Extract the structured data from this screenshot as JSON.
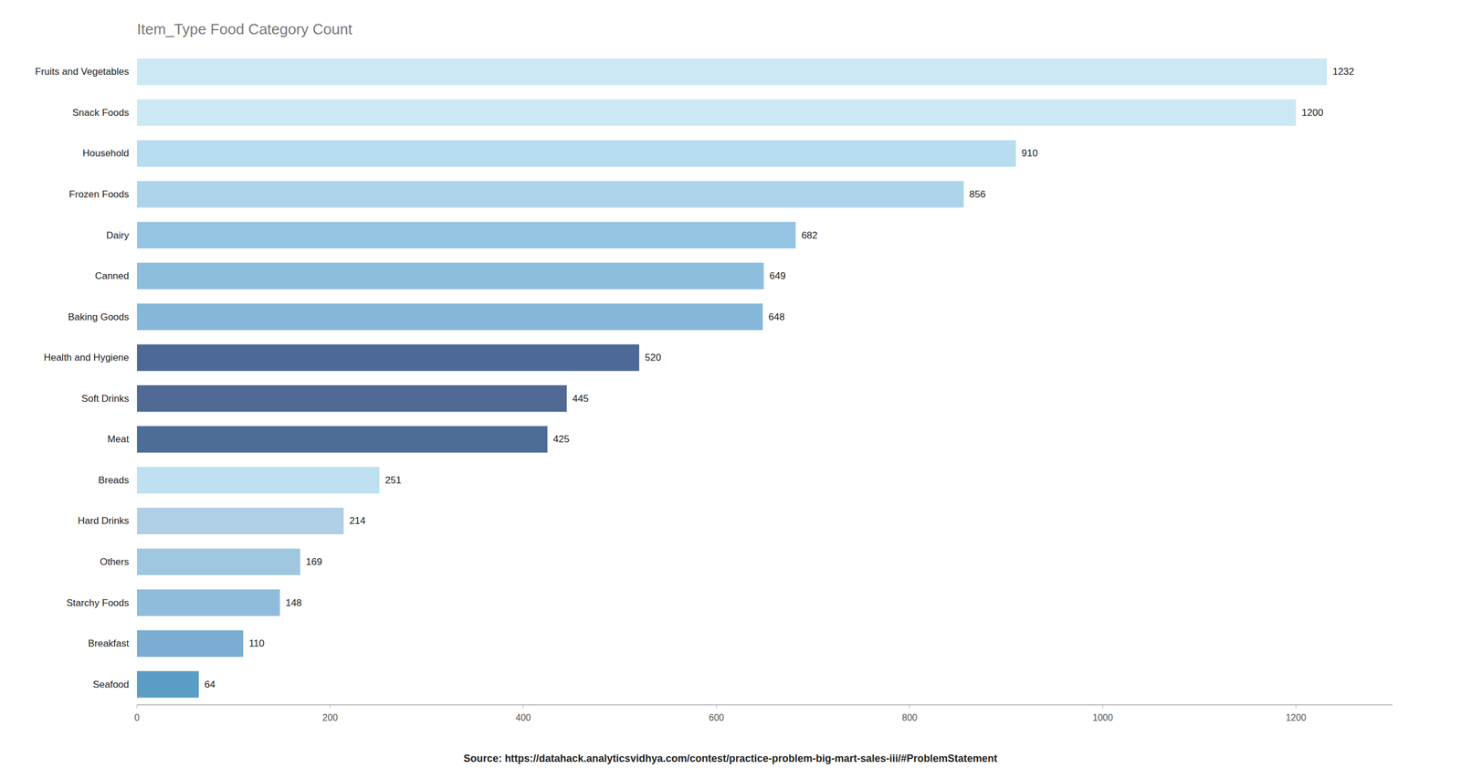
{
  "chart_data": {
    "type": "bar",
    "orientation": "horizontal",
    "title": "Item_Type Food Category Count",
    "categories": [
      "Fruits and Vegetables",
      "Snack Foods",
      "Household",
      "Frozen Foods",
      "Dairy",
      "Canned",
      "Baking Goods",
      "Health and Hygiene",
      "Soft Drinks",
      "Meat",
      "Breads",
      "Hard Drinks",
      "Others",
      "Starchy Foods",
      "Breakfast",
      "Seafood"
    ],
    "values": [
      1232,
      1200,
      910,
      856,
      682,
      649,
      648,
      520,
      445,
      425,
      251,
      214,
      169,
      148,
      110,
      64
    ],
    "colors": [
      "#cce8f4",
      "#cce8f4",
      "#b8dcf0",
      "#aed4eb",
      "#95c3e2",
      "#8dbedd",
      "#85b8d8",
      "#4d6a96",
      "#506a95",
      "#4d6d96",
      "#bee0f0",
      "#aecfe6",
      "#9fc7e0",
      "#8fbcda",
      "#7aadd1",
      "#5b9cc4"
    ],
    "xlim": [
      0,
      1300
    ],
    "xticks": [
      0,
      200,
      400,
      600,
      800,
      1000,
      1200
    ],
    "data_labels": true,
    "grid": false,
    "annotations": [
      "Source: https://datahack.analyticsvidhya.com/contest/practice-problem-big-mart-sales-iii/#ProblemStatement"
    ]
  }
}
